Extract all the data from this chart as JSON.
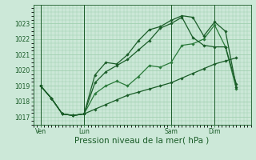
{
  "bg_color": "#cce8d8",
  "grid_color": "#99ccaa",
  "line_color_dark": "#1a5c28",
  "ylim": [
    1016.5,
    1024.2
  ],
  "yticks": [
    1017,
    1018,
    1019,
    1020,
    1021,
    1022,
    1023
  ],
  "xlabel": "Pression niveau de la mer( hPa )",
  "xlabel_fontsize": 7.5,
  "xtick_labels": [
    "Ven",
    "Lun",
    "Sam",
    "Dim"
  ],
  "xtick_positions": [
    2,
    14,
    38,
    50
  ],
  "vline_positions": [
    2,
    14,
    38,
    50
  ],
  "xlim": [
    0,
    60
  ],
  "line1": {
    "x": [
      2,
      5,
      8,
      11,
      14,
      17,
      20,
      23,
      26,
      29,
      32,
      35,
      38,
      41,
      44,
      47,
      50,
      53,
      56
    ],
    "y": [
      1019.0,
      1018.2,
      1017.2,
      1017.1,
      1017.2,
      1017.5,
      1017.8,
      1018.1,
      1018.4,
      1018.6,
      1018.8,
      1019.0,
      1019.2,
      1019.5,
      1019.8,
      1020.1,
      1020.4,
      1020.6,
      1020.8
    ],
    "marker": "D",
    "markersize": 1.8,
    "linewidth": 0.9,
    "color": "#1a5c28"
  },
  "line2": {
    "x": [
      2,
      5,
      8,
      11,
      14,
      17,
      20,
      23,
      26,
      29,
      32,
      35,
      38,
      41,
      44,
      47,
      50,
      53,
      56
    ],
    "y": [
      1019.0,
      1018.2,
      1017.2,
      1017.1,
      1017.2,
      1018.5,
      1019.0,
      1019.3,
      1019.0,
      1019.6,
      1020.3,
      1020.2,
      1020.5,
      1021.6,
      1021.7,
      1022.0,
      1022.9,
      1021.5,
      1018.8
    ],
    "marker": "D",
    "markersize": 1.8,
    "linewidth": 0.9,
    "color": "#2a7a3a"
  },
  "line3": {
    "x": [
      2,
      5,
      8,
      11,
      14,
      17,
      20,
      23,
      26,
      29,
      32,
      35,
      38,
      41,
      44,
      47,
      50,
      53,
      56
    ],
    "y": [
      1019.0,
      1018.2,
      1017.2,
      1017.1,
      1017.2,
      1019.2,
      1019.9,
      1020.3,
      1020.7,
      1021.3,
      1021.9,
      1022.7,
      1023.0,
      1023.4,
      1022.1,
      1021.6,
      1021.5,
      1021.5,
      1019.1
    ],
    "marker": "D",
    "markersize": 1.8,
    "linewidth": 0.9,
    "color": "#1a5c28"
  },
  "line4": {
    "x": [
      2,
      5,
      8,
      11,
      14,
      17,
      20,
      23,
      26,
      29,
      32,
      35,
      38,
      41,
      44,
      47,
      50,
      53,
      56
    ],
    "y": [
      1019.0,
      1018.2,
      1017.2,
      1017.1,
      1017.2,
      1019.7,
      1020.5,
      1020.4,
      1021.0,
      1021.9,
      1022.6,
      1022.8,
      1023.2,
      1023.5,
      1023.4,
      1022.2,
      1023.1,
      1022.5,
      1018.9
    ],
    "marker": "D",
    "markersize": 1.8,
    "linewidth": 0.9,
    "color": "#1a5c28"
  }
}
